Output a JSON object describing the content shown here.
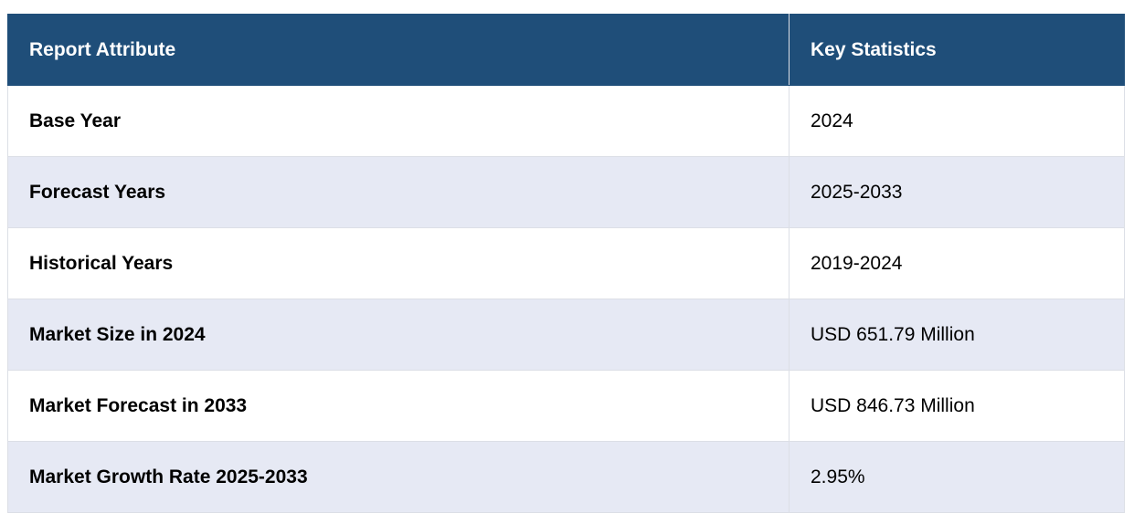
{
  "table": {
    "headers": [
      "Report Attribute",
      "Key Statistics"
    ],
    "rows": [
      {
        "attribute": "Base Year",
        "value": "2024"
      },
      {
        "attribute": "Forecast Years",
        "value": "2025-2033"
      },
      {
        "attribute": "Historical Years",
        "value": "2019-2024"
      },
      {
        "attribute": "Market Size in 2024",
        "value": "USD 651.79 Million"
      },
      {
        "attribute": "Market Forecast in 2033",
        "value": "USD 846.73 Million"
      },
      {
        "attribute": "Market Growth Rate 2025-2033",
        "value": "2.95%"
      }
    ]
  },
  "colors": {
    "header_bg": "#1f4e79",
    "header_text": "#ffffff",
    "stripe_bg": "#e6e9f4",
    "border": "#dcdfe6"
  }
}
